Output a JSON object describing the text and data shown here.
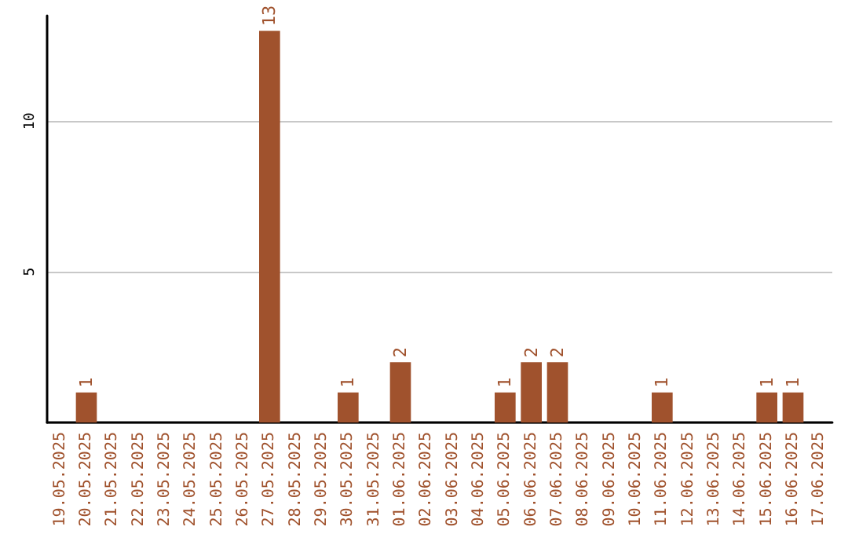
{
  "chart_data": {
    "type": "bar",
    "categories": [
      "19.05.2025",
      "20.05.2025",
      "21.05.2025",
      "22.05.2025",
      "23.05.2025",
      "24.05.2025",
      "25.05.2025",
      "26.05.2025",
      "27.05.2025",
      "28.05.2025",
      "29.05.2025",
      "30.05.2025",
      "31.05.2025",
      "01.06.2025",
      "02.06.2025",
      "03.06.2025",
      "04.06.2025",
      "05.06.2025",
      "06.06.2025",
      "07.06.2025",
      "08.06.2025",
      "09.06.2025",
      "10.06.2025",
      "11.06.2025",
      "12.06.2025",
      "13.06.2025",
      "14.06.2025",
      "15.06.2025",
      "16.06.2025",
      "17.06.2025"
    ],
    "values": [
      0,
      1,
      0,
      0,
      0,
      0,
      0,
      0,
      13,
      0,
      0,
      1,
      0,
      2,
      0,
      0,
      0,
      1,
      2,
      2,
      0,
      0,
      0,
      1,
      0,
      0,
      0,
      1,
      1,
      0
    ],
    "value_labels": [
      null,
      "1",
      null,
      null,
      null,
      null,
      null,
      null,
      "13",
      null,
      null,
      "1",
      null,
      "2",
      null,
      null,
      null,
      "1",
      "2",
      "2",
      null,
      null,
      null,
      "1",
      null,
      null,
      null,
      "1",
      "1",
      null
    ],
    "color": "#a0522d",
    "ylim": [
      0,
      13.5
    ],
    "yticks": [
      {
        "value": 0,
        "label": null
      },
      5,
      10
    ],
    "grid": "y"
  }
}
